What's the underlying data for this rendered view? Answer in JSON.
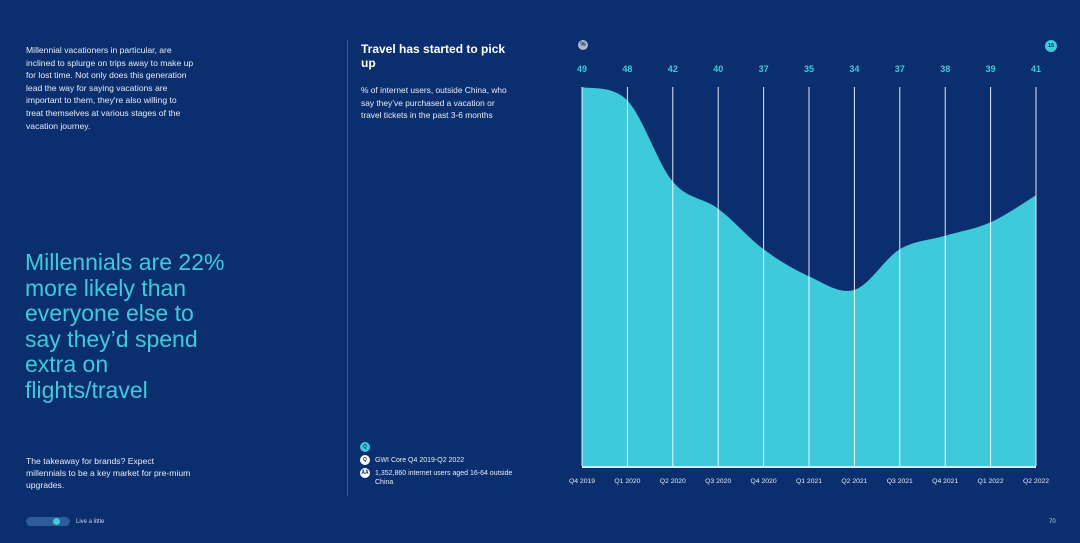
{
  "left_column": {
    "intro": "Millennial vacationers in particular, are inclined to splurge on trips away to make up for lost time. Not only does this generation lead the way for saying vacations are important to them, they're also willing to treat themselves at various stages of the vacation journey.",
    "headline": "Millennials are 22% more likely than everyone else to say they’d spend extra on flights/travel",
    "takeaway": "The takeaway for brands? Expect millennials to be a key market for pre-mium upgrades."
  },
  "sources": {
    "icon_top": "Q",
    "calendar_icon": "Q",
    "people_icon": "ÅÅ",
    "survey": "GWI Core Q4 2019-Q2 2022",
    "sample": "1,352,860 internet users aged 16-64 outside China"
  },
  "chart_icons": {
    "unit": "%",
    "marker": "15"
  },
  "footer": {
    "label": "Live a little",
    "page": "70",
    "progress": 0.75
  },
  "colors": {
    "background": "#0b2f6e",
    "area": "#3fcadb",
    "gridline": "#ffffff",
    "text": "#ffffff"
  },
  "chart_data": {
    "type": "area",
    "title": "Travel has started to pick up",
    "subtitle": "% of internet users, outside China, who say they’ve purchased a vacation or travel tickets in the past 3-6 months",
    "categories": [
      "Q4 2019",
      "Q1 2020",
      "Q2 2020",
      "Q3 2020",
      "Q4 2020",
      "Q1 2021",
      "Q2 2021",
      "Q3 2021",
      "Q4 2021",
      "Q1 2022",
      "Q2 2022"
    ],
    "values": [
      49,
      48,
      42,
      40,
      37,
      35,
      34,
      37,
      38,
      39,
      41
    ],
    "value_labels": [
      "49",
      "48",
      "42",
      "40",
      "37",
      "35",
      "34",
      "37",
      "38",
      "39",
      "41"
    ],
    "ylim": [
      0,
      49
    ],
    "grid": true,
    "legend": "none",
    "xlabel": "",
    "ylabel": ""
  }
}
